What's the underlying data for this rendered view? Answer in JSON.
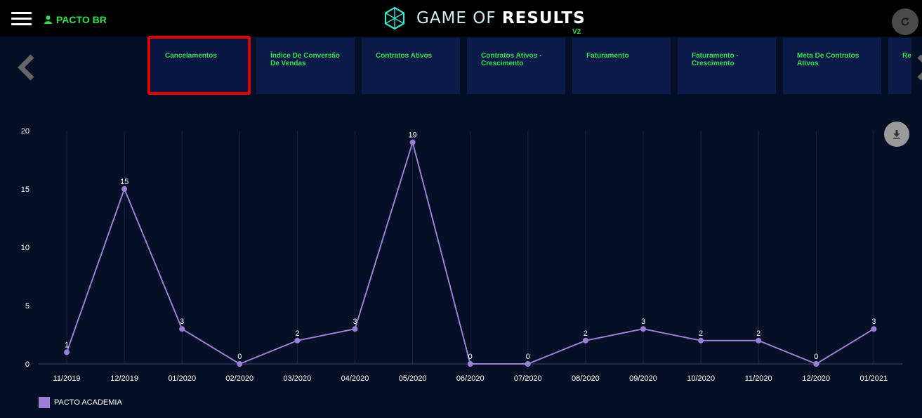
{
  "header": {
    "user_name": "PACTO BR",
    "logo_text_light": "GAME OF ",
    "logo_text_bold": "RESULTS",
    "version": "V2"
  },
  "tabs": [
    {
      "label": "Cancelamentos"
    },
    {
      "label": "Índice De Conversão De Vendas"
    },
    {
      "label": "Contratos Ativos"
    },
    {
      "label": "Contratos Ativos - Crescimento"
    },
    {
      "label": "Faturamento"
    },
    {
      "label": "Faturamento - Crescimento"
    },
    {
      "label": "Meta De Contratos Ativos"
    },
    {
      "label": "Re"
    }
  ],
  "active_tab": 0,
  "colors": {
    "accent_green": "#2ee04e",
    "series": "#9b7fd4",
    "active_border": "#e00000"
  },
  "chart_data": {
    "type": "line",
    "x": [
      "11/2019",
      "12/2019",
      "01/2020",
      "02/2020",
      "03/2020",
      "04/2020",
      "05/2020",
      "06/2020",
      "07/2020",
      "08/2020",
      "09/2020",
      "10/2020",
      "11/2020",
      "12/2020",
      "01/2021"
    ],
    "series": [
      {
        "name": "PACTO ACADEMIA",
        "values": [
          1,
          15,
          3,
          0,
          2,
          3,
          19,
          0,
          0,
          2,
          3,
          2,
          2,
          0,
          3
        ]
      }
    ],
    "yticks": [
      0,
      5,
      10,
      15,
      20
    ],
    "ylim": [
      0,
      20
    ],
    "grid": "vertical",
    "legend": "bottom-left",
    "data_labels": true
  }
}
